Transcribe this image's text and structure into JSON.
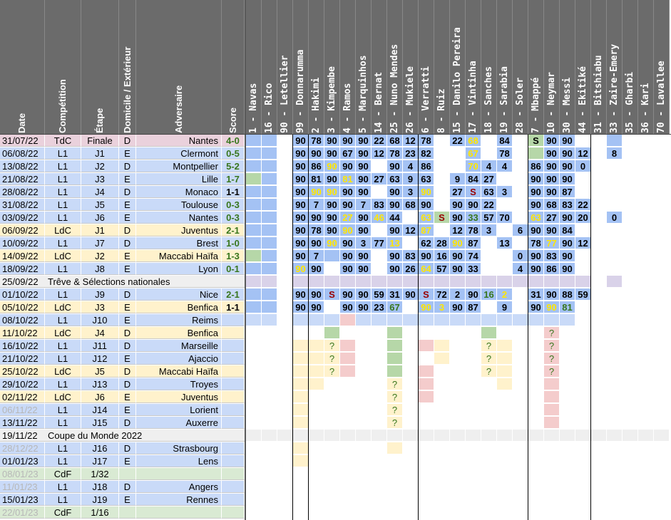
{
  "headers": {
    "date": "Date",
    "comp": "Compétition",
    "stage": "Étape",
    "dom": "Domicile / Extérieur",
    "opp": "Adversaire",
    "score": "Score"
  },
  "players": [
    "1 - Navas",
    "16 - Rico",
    "90 - Letellier",
    "99 - Donnarumma",
    "2 - Hakimi",
    "3 - Kimpembe",
    "4 - Ramos",
    "5 - Marquinhos",
    "14 - Bernat",
    "25 - Nuno Mendes",
    "26 - Mukiele",
    "6 - Verratti",
    "8 - Ruiz",
    "15 - Danilo Pereira",
    "17 - Vintinha",
    "18 - Sanches",
    "19 - Sarabia",
    "28 - Soler",
    "7 - Mbappé",
    "10 - Neymar",
    "30 - Messi",
    "44 - Ekitiké",
    "31 - Bitshiabu",
    "33 - Zaire-Emery",
    "35 - Gharbi",
    "36 - Kari",
    "70 - Lavallee"
  ],
  "colors": {
    "header": "#6b6b6b",
    "blue": "#a4c2f4",
    "lightblue": "#c9daf8",
    "green": "#d9ead3",
    "yellow": "#fff2cc",
    "pink": "#ead1dc",
    "red": "#f4cccc",
    "gray": "#efefef",
    "lav": "#d9d2e9",
    "mgreen": "#b6d7a8",
    "winText": "#38761d",
    "yellowText": "#ffe600",
    "sText": "#990000"
  },
  "rows": [
    {
      "date": "31/07/22",
      "comp": "TdC",
      "stage": "Finale",
      "dom": "D",
      "opp": "Nantes",
      "score": "4-0",
      "res": "w",
      "tone": "pink",
      "cells": [
        "b",
        "b",
        "",
        "b:90",
        "b:78",
        "b:90",
        "b:90",
        "b:90",
        "b:22",
        "b:68",
        "b:12",
        "b:78",
        "",
        "b:22",
        "b:68y",
        "",
        "b:84",
        "",
        "g:S",
        "b:90",
        "b:90",
        "",
        "",
        "b",
        "",
        "",
        ""
      ]
    },
    {
      "date": "06/08/22",
      "comp": "L1",
      "stage": "J1",
      "dom": "E",
      "opp": "Clermont",
      "score": "0-5",
      "res": "w",
      "tone": "blue",
      "cells": [
        "b",
        "b",
        "",
        "b:90",
        "b:90",
        "b:90",
        "b:67",
        "b:90",
        "b:12",
        "b:78",
        "b:23",
        "b:82",
        "",
        "",
        "b:67y",
        "",
        "b:78",
        "",
        "g",
        "b:90",
        "b:90",
        "b:12",
        "",
        "b:8",
        "",
        "",
        ""
      ]
    },
    {
      "date": "13/08/22",
      "comp": "L1",
      "stage": "J2",
      "dom": "D",
      "opp": "Montpellier",
      "score": "5-2",
      "res": "w",
      "tone": "blue",
      "cells": [
        "b",
        "b",
        "",
        "b:90",
        "b:86",
        "b:90y",
        "b:90",
        "b:90",
        "",
        "b:90",
        "b:4",
        "b:86",
        "",
        "",
        "b:70y",
        "b:4",
        "b:4",
        "",
        "b:86",
        "b:90",
        "b:90",
        "b:0",
        "",
        "",
        "",
        "",
        ""
      ]
    },
    {
      "date": "21/08/22",
      "comp": "L1",
      "stage": "J3",
      "dom": "E",
      "opp": "Lille",
      "score": "1-7",
      "res": "w",
      "tone": "blue",
      "cells": [
        "g",
        "b",
        "",
        "b:90",
        "b:81",
        "b:90",
        "b:81y",
        "b:90",
        "b:27",
        "b:63",
        "b:9",
        "b:63",
        "",
        "b:9",
        "b:84",
        "b:27",
        "",
        "",
        "b:90",
        "b:90",
        "b:90",
        "",
        "",
        "",
        "",
        "",
        ""
      ]
    },
    {
      "date": "28/08/22",
      "comp": "L1",
      "stage": "J4",
      "dom": "D",
      "opp": "Monaco",
      "score": "1-1",
      "res": "d",
      "tone": "blue",
      "cells": [
        "b",
        "b",
        "",
        "b:90",
        "b:90y",
        "b:90y",
        "b:90",
        "b:90",
        "",
        "b:90",
        "b:3",
        "b:90y",
        "",
        "b:27",
        "b:Ss",
        "b:63",
        "b:3",
        "",
        "b:90",
        "b:90",
        "b:87",
        "",
        "",
        "",
        "",
        "",
        ""
      ]
    },
    {
      "date": "31/08/22",
      "comp": "L1",
      "stage": "J5",
      "dom": "E",
      "opp": "Toulouse",
      "score": "0-3",
      "res": "w",
      "tone": "blue",
      "cells": [
        "b",
        "b",
        "",
        "b:90",
        "b:7",
        "b:90",
        "b:90",
        "b:7",
        "b:83",
        "b:90",
        "b:68",
        "b:90",
        "",
        "b:90",
        "b:90",
        "b:22",
        "",
        "",
        "b:90",
        "b:68",
        "b:83",
        "b:22",
        "",
        "",
        "",
        "",
        ""
      ]
    },
    {
      "date": "03/09/22",
      "comp": "L1",
      "stage": "J6",
      "dom": "E",
      "opp": "Nantes",
      "score": "0-3",
      "res": "w",
      "tone": "blue",
      "cells": [
        "b",
        "b",
        "",
        "b:90",
        "b:90",
        "b:90",
        "b:27y",
        "b:90",
        "b:46y",
        "b:44",
        "",
        "b:63y",
        "g:Ss",
        "b:90",
        "b:33w",
        "b:57",
        "b:70",
        "",
        "b:63y",
        "b:27",
        "b:90",
        "b:20",
        "",
        "b:0",
        "",
        "",
        ""
      ]
    },
    {
      "date": "06/09/22",
      "comp": "LdC",
      "stage": "J1",
      "dom": "D",
      "opp": "Juventus",
      "score": "2-1",
      "res": "w",
      "tone": "yellow",
      "cells": [
        "b",
        "b",
        "",
        "b:90",
        "b:78",
        "b:90",
        "b:90y",
        "b:90",
        "",
        "b:90",
        "b:12",
        "b:87y",
        "",
        "b:12",
        "b:78",
        "b:3",
        "",
        "b:6",
        "b:90",
        "b:90",
        "b:84",
        "",
        "",
        "",
        "",
        "",
        ""
      ]
    },
    {
      "date": "10/09/22",
      "comp": "L1",
      "stage": "J7",
      "dom": "D",
      "opp": "Brest",
      "score": "1-0",
      "res": "w",
      "tone": "blue",
      "cells": [
        "b",
        "b",
        "",
        "b:90",
        "b:90",
        "b:90y",
        "b:90",
        "b:3",
        "b:77",
        "b:13y",
        "",
        "b:62",
        "b:28",
        "b:90y",
        "b:87",
        "",
        "b:13",
        "",
        "b:78",
        "b:77y",
        "b:90",
        "b:12",
        "",
        "",
        "",
        "",
        ""
      ]
    },
    {
      "date": "14/09/22",
      "comp": "LdC",
      "stage": "J2",
      "dom": "E",
      "opp": "Maccabi Haïfa",
      "score": "1-3",
      "res": "w",
      "tone": "yellow",
      "cells": [
        "g",
        "b",
        "",
        "b:90",
        "b:7",
        "b",
        "b:90",
        "b:90",
        "",
        "b:90",
        "b:83",
        "b:90",
        "b:16",
        "b:90",
        "b:74",
        "",
        "",
        "b:0",
        "b:90",
        "b:83",
        "b:90",
        "",
        "",
        "",
        "",
        "",
        ""
      ]
    },
    {
      "date": "18/09/22",
      "comp": "L1",
      "stage": "J8",
      "dom": "E",
      "opp": "Lyon",
      "score": "0-1",
      "res": "w",
      "tone": "blue",
      "cells": [
        "b",
        "b",
        "",
        "b:90y",
        "b:90",
        "",
        "b:90",
        "b:90",
        "",
        "b:90",
        "b:26",
        "b:64y",
        "b:57",
        "b:90",
        "b:33",
        "",
        "",
        "b:4",
        "b:90",
        "b:86",
        "b:90",
        "",
        "",
        "",
        "",
        "",
        ""
      ]
    },
    {
      "date": "25/09/22",
      "label": "Trêve & Sélections nationales",
      "tone": "gray",
      "cells": [
        "l",
        "l",
        "",
        "l",
        "l",
        "l",
        "l",
        "l",
        "l",
        "l",
        "l",
        "l",
        "l",
        "l",
        "l",
        "l",
        "l",
        "l",
        "l",
        "l",
        "l",
        "l",
        "",
        "l",
        "",
        "",
        ""
      ]
    },
    {
      "date": "01/10/22",
      "comp": "L1",
      "stage": "J9",
      "dom": "D",
      "opp": "Nice",
      "score": "2-1",
      "res": "w",
      "tone": "blue",
      "cells": [
        "b",
        "b",
        "",
        "b:90",
        "b:90",
        "b:Ss",
        "b:90",
        "b:90",
        "b:59",
        "b:31",
        "b:90",
        "b:Ss",
        "b:72",
        "b:2",
        "b:90",
        "b:16w",
        "b:2y",
        "",
        "b:31",
        "b:90",
        "b:88",
        "b:59",
        "",
        "",
        "",
        "",
        ""
      ]
    },
    {
      "date": "05/10/22",
      "comp": "LdC",
      "stage": "J3",
      "dom": "E",
      "opp": "Benfica",
      "score": "1-1",
      "res": "d",
      "tone": "yellow",
      "cells": [
        "b",
        "b",
        "",
        "b:90",
        "b:90",
        "",
        "b:90",
        "b:90",
        "b:23",
        "b:67w",
        "",
        "b:90y",
        "b:3y",
        "b:90",
        "b:87",
        "",
        "b:9",
        "",
        "b:90",
        "b:90y",
        "b:81w",
        "",
        "",
        "",
        "",
        "",
        ""
      ]
    },
    {
      "date": "08/10/22",
      "comp": "L1",
      "stage": "J10",
      "dom": "E",
      "opp": "Reims",
      "score": "",
      "tone": "blue",
      "cells": [
        "lb",
        "lb",
        "",
        "lb",
        "lb",
        "lb",
        "r",
        "lb",
        "lb",
        "lb",
        "lb",
        "lb",
        "lb",
        "lb",
        "lb",
        "lb",
        "lb",
        "lb",
        "lb",
        "lb",
        "lb",
        "",
        "",
        "",
        "",
        "",
        ""
      ]
    },
    {
      "date": "11/10/22",
      "comp": "LdC",
      "stage": "J4",
      "dom": "D",
      "opp": "Benfica",
      "score": "",
      "tone": "yellow",
      "cells": [
        "",
        "",
        "",
        "",
        "",
        "g",
        "",
        "",
        "",
        "g",
        "",
        "",
        "",
        "",
        "",
        "g",
        "",
        "",
        "",
        "r:?",
        "",
        "",
        "",
        "",
        "",
        "",
        ""
      ]
    },
    {
      "date": "16/10/22",
      "comp": "L1",
      "stage": "J11",
      "dom": "D",
      "opp": "Marseille",
      "score": "",
      "tone": "blue",
      "cells": [
        "",
        "",
        "",
        "y",
        "y",
        "y:?",
        "r",
        "",
        "",
        "g",
        "",
        "r",
        "y",
        "",
        "",
        "y:?",
        "y",
        "",
        "",
        "r:?",
        "",
        "",
        "",
        "",
        "",
        "",
        ""
      ]
    },
    {
      "date": "21/10/22",
      "comp": "L1",
      "stage": "J12",
      "dom": "E",
      "opp": "Ajaccio",
      "score": "",
      "tone": "blue",
      "cells": [
        "",
        "",
        "",
        "y",
        "y",
        "y:?",
        "r",
        "",
        "",
        "g",
        "",
        "",
        "y",
        "",
        "",
        "y:?",
        "y",
        "",
        "",
        "r:?",
        "",
        "",
        "",
        "",
        "",
        "",
        ""
      ]
    },
    {
      "date": "25/10/22",
      "comp": "LdC",
      "stage": "J5",
      "dom": "D",
      "opp": "Maccabi Haïfa",
      "score": "",
      "tone": "yellow",
      "cells": [
        "",
        "",
        "",
        "y",
        "y",
        "y:?",
        "r",
        "",
        "",
        "g",
        "",
        "r",
        "",
        "",
        "",
        "y:?",
        "y",
        "",
        "",
        "r:?",
        "",
        "",
        "",
        "",
        "",
        "",
        ""
      ]
    },
    {
      "date": "29/10/22",
      "comp": "L1",
      "stage": "J13",
      "dom": "D",
      "opp": "Troyes",
      "score": "",
      "tone": "blue",
      "cells": [
        "",
        "",
        "",
        "y",
        "y",
        "",
        "",
        "",
        "",
        "y:?",
        "",
        "r",
        "",
        "",
        "",
        "",
        "y",
        "",
        "",
        "r",
        "",
        "",
        "",
        "",
        "",
        "",
        ""
      ]
    },
    {
      "date": "02/11/22",
      "comp": "LdC",
      "stage": "J6",
      "dom": "E",
      "opp": "Juventus",
      "score": "",
      "tone": "yellow",
      "cells": [
        "",
        "",
        "",
        "y",
        "",
        "",
        "",
        "",
        "",
        "y:?",
        "",
        "r",
        "",
        "",
        "",
        "",
        "",
        "",
        "",
        "r",
        "",
        "",
        "",
        "",
        "",
        "",
        ""
      ]
    },
    {
      "date": "06/11/22",
      "faded": true,
      "comp": "L1",
      "stage": "J14",
      "dom": "E",
      "opp": "Lorient",
      "score": "",
      "tone": "blue",
      "cells": [
        "",
        "",
        "",
        "y",
        "",
        "",
        "",
        "",
        "",
        "y:?",
        "",
        "",
        "",
        "",
        "",
        "",
        "",
        "",
        "",
        "r",
        "",
        "",
        "",
        "",
        "",
        "",
        ""
      ]
    },
    {
      "date": "13/11/22",
      "comp": "L1",
      "stage": "J15",
      "dom": "D",
      "opp": "Auxerre",
      "score": "",
      "tone": "blue",
      "cells": [
        "",
        "",
        "",
        "y",
        "",
        "",
        "",
        "",
        "",
        "y:?",
        "",
        "",
        "",
        "",
        "",
        "",
        "",
        "",
        "",
        "r",
        "",
        "",
        "",
        "",
        "",
        "",
        ""
      ]
    },
    {
      "date": "19/11/22",
      "label": "Coupe du Monde 2022",
      "tone": "gray",
      "cells": [
        "e",
        "e",
        "e",
        "e",
        "e",
        "e",
        "e",
        "e",
        "e",
        "e",
        "e",
        "e",
        "e",
        "e",
        "e",
        "e",
        "e",
        "e",
        "e",
        "e",
        "e",
        "e",
        "e",
        "e",
        "e",
        "e",
        "e"
      ]
    },
    {
      "date": "28/12/22",
      "faded": true,
      "comp": "L1",
      "stage": "J16",
      "dom": "D",
      "opp": "Strasbourg",
      "score": "",
      "tone": "blue",
      "cells": [
        "",
        "",
        "",
        "y",
        "",
        "",
        "",
        "",
        "",
        "y",
        "",
        "",
        "",
        "",
        "",
        "",
        "",
        "",
        "",
        "",
        "",
        "",
        "",
        "",
        "",
        "",
        ""
      ]
    },
    {
      "date": "01/01/23",
      "comp": "L1",
      "stage": "J17",
      "dom": "E",
      "opp": "Lens",
      "score": "",
      "tone": "blue",
      "cells": [
        "",
        "",
        "",
        "y",
        "",
        "",
        "",
        "",
        "",
        "",
        "",
        "",
        "",
        "",
        "",
        "",
        "",
        "",
        "",
        "",
        "",
        "",
        "",
        "",
        "",
        "",
        ""
      ]
    },
    {
      "date": "08/01/23",
      "faded": true,
      "comp": "CdF",
      "stage": "1/32",
      "dom": "",
      "opp": "",
      "score": "",
      "tone": "green",
      "cells": [
        "",
        "",
        "",
        "",
        "",
        "",
        "",
        "",
        "",
        "",
        "",
        "",
        "",
        "",
        "",
        "",
        "",
        "",
        "",
        "",
        "",
        "",
        "",
        "",
        "",
        "",
        ""
      ]
    },
    {
      "date": "11/01/23",
      "faded": true,
      "comp": "L1",
      "stage": "J18",
      "dom": "D",
      "opp": "Angers",
      "score": "",
      "tone": "blue",
      "cells": [
        "",
        "",
        "",
        "",
        "",
        "",
        "",
        "",
        "",
        "",
        "",
        "",
        "",
        "",
        "",
        "",
        "",
        "",
        "",
        "",
        "",
        "",
        "",
        "",
        "",
        "",
        ""
      ]
    },
    {
      "date": "15/01/23",
      "comp": "L1",
      "stage": "J19",
      "dom": "E",
      "opp": "Rennes",
      "score": "",
      "tone": "blue",
      "cells": [
        "",
        "",
        "",
        "",
        "",
        "",
        "",
        "",
        "",
        "",
        "",
        "",
        "",
        "",
        "",
        "",
        "",
        "",
        "",
        "",
        "",
        "",
        "",
        "",
        "",
        "",
        ""
      ]
    },
    {
      "date": "22/01/23",
      "faded": true,
      "comp": "CdF",
      "stage": "1/16",
      "dom": "",
      "opp": "",
      "score": "",
      "tone": "green",
      "cells": [
        "",
        "",
        "",
        "",
        "",
        "",
        "",
        "",
        "",
        "",
        "",
        "",
        "",
        "",
        "",
        "",
        "",
        "",
        "",
        "",
        "",
        "",
        "",
        "",
        "",
        "",
        ""
      ]
    }
  ]
}
